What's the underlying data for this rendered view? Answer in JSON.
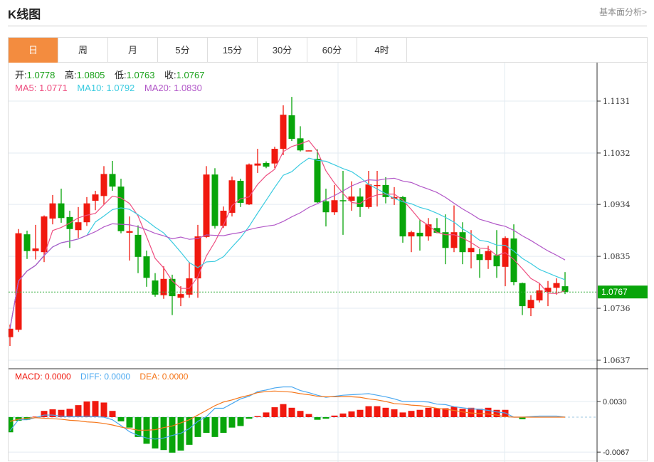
{
  "header": {
    "title": "K线图",
    "link": "基本面分析>"
  },
  "tabs": [
    {
      "label": "日",
      "active": true
    },
    {
      "label": "周"
    },
    {
      "label": "月"
    },
    {
      "label": "5分"
    },
    {
      "label": "15分"
    },
    {
      "label": "30分"
    },
    {
      "label": "60分"
    },
    {
      "label": "4时"
    }
  ],
  "ohlc": {
    "open_label": "开:",
    "open": "1.0778",
    "high_label": "高:",
    "high": "1.0805",
    "low_label": "低:",
    "low": "1.0763",
    "close_label": "收:",
    "close": "1.0767"
  },
  "ma": {
    "ma5": "MA5: 1.0771",
    "ma10": "MA10: 1.0792",
    "ma20": "MA20: 1.0830"
  },
  "macd_info": {
    "macd": "MACD: 0.0000",
    "diff": "DIFF: 0.0000",
    "dea": "DEA: 0.0000"
  },
  "colors": {
    "up": "#f0190f",
    "down": "#08a50a",
    "ma5": "#ee4e80",
    "ma10": "#3bcbe0",
    "ma20": "#b258c8",
    "diff": "#4aa8f0",
    "dea": "#f5761a",
    "accent": "#f38c3f"
  },
  "price_axis": {
    "ticks": [
      "1.1131",
      "1.1032",
      "1.0934",
      "1.0835",
      "1.0736",
      "1.0637"
    ],
    "current": "1.0767"
  },
  "macd_axis": {
    "ticks": [
      "0.0030",
      "-0.0067"
    ]
  },
  "candles": [
    [
      1.0681,
      1.0705,
      1.0664,
      1.0697
    ],
    [
      1.0695,
      1.0887,
      1.0691,
      1.0879
    ],
    [
      1.0877,
      1.0884,
      1.083,
      1.0845
    ],
    [
      1.0845,
      1.0895,
      1.0829,
      1.085
    ],
    [
      1.0843,
      1.0913,
      1.0824,
      1.0911
    ],
    [
      1.0907,
      1.0952,
      1.0896,
      1.0936
    ],
    [
      1.0936,
      1.0964,
      1.0899,
      1.0908
    ],
    [
      1.091,
      1.0922,
      1.0851,
      1.0887
    ],
    [
      1.0885,
      1.0929,
      1.087,
      1.09
    ],
    [
      1.09,
      1.0948,
      1.0893,
      1.0936
    ],
    [
      1.0941,
      1.096,
      1.0923,
      1.0953
    ],
    [
      1.095,
      1.1007,
      1.0934,
      1.0992
    ],
    [
      1.0992,
      1.1017,
      1.096,
      1.0968
    ],
    [
      1.0968,
      1.0983,
      1.0879,
      1.0883
    ],
    [
      1.088,
      1.0911,
      1.0827,
      1.0883
    ],
    [
      1.0876,
      1.0894,
      1.0803,
      1.0834
    ],
    [
      1.0835,
      1.0846,
      1.0777,
      1.0794
    ],
    [
      1.0789,
      1.0803,
      1.0758,
      1.0762
    ],
    [
      1.0761,
      1.0816,
      1.0754,
      1.0792
    ],
    [
      1.0792,
      1.08,
      1.0723,
      1.0759
    ],
    [
      1.0756,
      1.0778,
      1.074,
      1.0763
    ],
    [
      1.0762,
      1.0824,
      1.0756,
      1.0793
    ],
    [
      1.0793,
      1.0895,
      1.0756,
      1.0873
    ],
    [
      1.0872,
      1.1007,
      1.087,
      1.0991
    ],
    [
      1.0991,
      1.1003,
      1.0888,
      1.0893
    ],
    [
      1.0893,
      1.093,
      1.0889,
      1.0922
    ],
    [
      1.0918,
      1.0987,
      1.0911,
      1.098
    ],
    [
      1.0979,
      1.0983,
      1.0929,
      1.0937
    ],
    [
      1.0934,
      1.1012,
      1.0933,
      1.101
    ],
    [
      1.1008,
      1.104,
      1.0994,
      1.1012
    ],
    [
      1.1013,
      1.1016,
      1.1003,
      1.1006
    ],
    [
      1.1012,
      1.1044,
      1.1003,
      1.104
    ],
    [
      1.104,
      1.1123,
      1.1028,
      1.1105
    ],
    [
      1.1104,
      1.1139,
      1.1055,
      1.1059
    ],
    [
      1.106,
      1.1083,
      1.1035,
      1.1037
    ],
    [
      1.1036,
      1.1037,
      1.1036,
      1.1037
    ],
    [
      1.1021,
      1.1039,
      1.0937,
      1.0938
    ],
    [
      1.094,
      1.0964,
      1.0892,
      1.0919
    ],
    [
      1.0919,
      1.0971,
      1.0914,
      1.0942
    ],
    [
      1.0942,
      1.0998,
      1.0876,
      1.094
    ],
    [
      1.0941,
      1.0978,
      1.0922,
      1.0949
    ],
    [
      1.0949,
      1.0965,
      1.091,
      1.0929
    ],
    [
      1.0929,
      1.0998,
      1.0926,
      1.0972
    ],
    [
      1.097,
      1.0998,
      1.093,
      1.0971
    ],
    [
      1.0971,
      1.0986,
      1.0936,
      1.0948
    ],
    [
      1.0945,
      1.0967,
      1.0933,
      1.0948
    ],
    [
      1.0948,
      1.095,
      1.0861,
      1.0873
    ],
    [
      1.0873,
      1.0884,
      1.0843,
      1.0881
    ],
    [
      1.088,
      1.0904,
      1.0846,
      1.0873
    ],
    [
      1.0873,
      1.0908,
      1.0865,
      1.0896
    ],
    [
      1.0889,
      1.0908,
      1.0879,
      1.088
    ],
    [
      1.0881,
      1.0915,
      1.082,
      1.0851
    ],
    [
      1.0851,
      1.0932,
      1.0843,
      1.0881
    ],
    [
      1.0881,
      1.09,
      1.082,
      1.0843
    ],
    [
      1.0843,
      1.0885,
      1.0812,
      1.0851
    ],
    [
      1.0839,
      1.0849,
      1.0794,
      1.0828
    ],
    [
      1.0828,
      1.0855,
      1.0811,
      1.0845
    ],
    [
      1.0837,
      1.0885,
      1.0794,
      1.0816
    ],
    [
      1.0815,
      1.0873,
      1.0778,
      1.087
    ],
    [
      1.0869,
      1.0896,
      1.078,
      1.0786
    ],
    [
      1.0784,
      1.0785,
      1.0723,
      1.074
    ],
    [
      1.0736,
      1.0761,
      1.0721,
      1.0752
    ],
    [
      1.0751,
      1.0784,
      1.0747,
      1.077
    ],
    [
      1.0767,
      1.0788,
      1.074,
      1.0775
    ],
    [
      1.0775,
      1.0793,
      1.0762,
      1.0784
    ],
    [
      1.0778,
      1.0805,
      1.0763,
      1.0767
    ]
  ],
  "macd_hist": [
    -0.0029,
    -0.0007,
    -0.0005,
    0.0001,
    0.0012,
    0.0015,
    0.0014,
    0.0016,
    0.0023,
    0.003,
    0.0031,
    0.0028,
    0.0012,
    -0.0008,
    -0.002,
    -0.0038,
    -0.0051,
    -0.006,
    -0.0063,
    -0.0068,
    -0.0064,
    -0.0053,
    -0.0038,
    -0.003,
    -0.0038,
    -0.003,
    -0.002,
    -0.0017,
    -0.0003,
    0.0002,
    0.0009,
    0.0019,
    0.0025,
    0.0018,
    0.0012,
    0.0006,
    -0.0005,
    -0.0003,
    0.0003,
    0.0007,
    0.0011,
    0.0014,
    0.0021,
    0.0021,
    0.0018,
    0.0015,
    0.0009,
    0.0012,
    0.0014,
    0.0018,
    0.0017,
    0.0017,
    0.002,
    0.0016,
    0.0018,
    0.0016,
    0.0018,
    0.0014,
    0.0014,
    0,
    -0.0004,
    0,
    0,
    0,
    0,
    0
  ],
  "diff": [
    -0.0026,
    -0.0005,
    -0.0005,
    -0.0001,
    0.0004,
    0.0004,
    0.0002,
    0.0001,
    0.0001,
    0.0002,
    0.0001,
    0.0,
    -0.0005,
    -0.0016,
    -0.0028,
    -0.0035,
    -0.004,
    -0.0042,
    -0.004,
    -0.0035,
    -0.0031,
    -0.0022,
    -0.0008,
    0.0001,
    0.0017,
    0.0017,
    0.0026,
    0.0035,
    0.004,
    0.0049,
    0.0052,
    0.0056,
    0.0058,
    0.0058,
    0.0051,
    0.0047,
    0.0042,
    0.0038,
    0.004,
    0.0042,
    0.0043,
    0.0044,
    0.0045,
    0.0042,
    0.0039,
    0.0035,
    0.003,
    0.003,
    0.003,
    0.0029,
    0.0025,
    0.0024,
    0.002,
    0.0018,
    0.0016,
    0.0015,
    0.0013,
    0.001,
    0.0008,
    0,
    0,
    0.0001,
    0.0002,
    0.0002,
    0.0002,
    0
  ],
  "dea": [
    -0.0008,
    -0.0004,
    -0.0002,
    -0.0001,
    -0.0002,
    -0.0003,
    -0.0004,
    -0.0006,
    -0.0007,
    -0.0009,
    -0.001,
    -0.0012,
    -0.0015,
    -0.0019,
    -0.0022,
    -0.0025,
    -0.0025,
    -0.0024,
    -0.002,
    -0.0017,
    -0.0011,
    -0.0005,
    0.0004,
    0.0013,
    0.0022,
    0.0029,
    0.0033,
    0.0038,
    0.0042,
    0.0047,
    0.0049,
    0.005,
    0.0049,
    0.0048,
    0.0045,
    0.0043,
    0.004,
    0.0039,
    0.0039,
    0.0039,
    0.0039,
    0.0038,
    0.0035,
    0.0033,
    0.003,
    0.0026,
    0.0025,
    0.0023,
    0.0022,
    0.002,
    0.0017,
    0.0015,
    0.0013,
    0.001,
    0.0008,
    0.0007,
    0.0006,
    0.0004,
    0.0001,
    0,
    0,
    0,
    0,
    0,
    0,
    0
  ]
}
